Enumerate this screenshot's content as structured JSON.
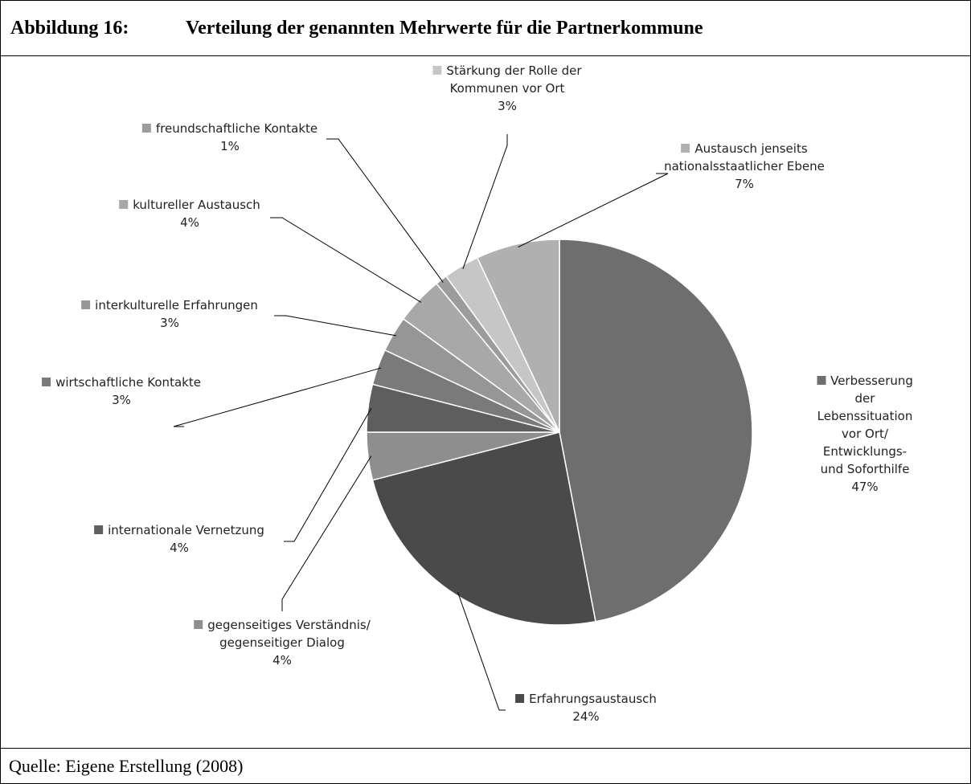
{
  "figure_label": "Abbildung 16:",
  "chart_data": {
    "type": "pie",
    "title": "Verteilung der genannten Mehrwerte für die Partnerkommune",
    "categories": [
      "Verbesserung der\nLebenssituation vor Ort/\nEntwicklungs- und Soforthilfe",
      "Erfahrungsaustausch",
      "gegenseitiges Verständnis/\ngegenseitiger Dialog",
      "internationale Vernetzung",
      "wirtschaftliche Kontakte",
      "interkulturelle Erfahrungen",
      "kultureller Austausch",
      "freundschaftliche Kontakte",
      "Stärkung der Rolle der\nKommunen vor Ort",
      "Austausch jenseits\nnationalsstaatlicher Ebene"
    ],
    "values": [
      47,
      24,
      4,
      4,
      3,
      3,
      4,
      1,
      3,
      7
    ],
    "value_labels": [
      "47%",
      "24%",
      "4%",
      "4%",
      "3%",
      "3%",
      "4%",
      "1%",
      "3%",
      "7%"
    ],
    "colors": [
      "#6e6e6e",
      "#4a4a4a",
      "#8e8e8e",
      "#5e5e5e",
      "#7a7a7a",
      "#969696",
      "#a8a8a8",
      "#9c9c9c",
      "#c6c6c6",
      "#b0b0b0"
    ]
  },
  "source": "Quelle: Eigene Erstellung (2008)"
}
